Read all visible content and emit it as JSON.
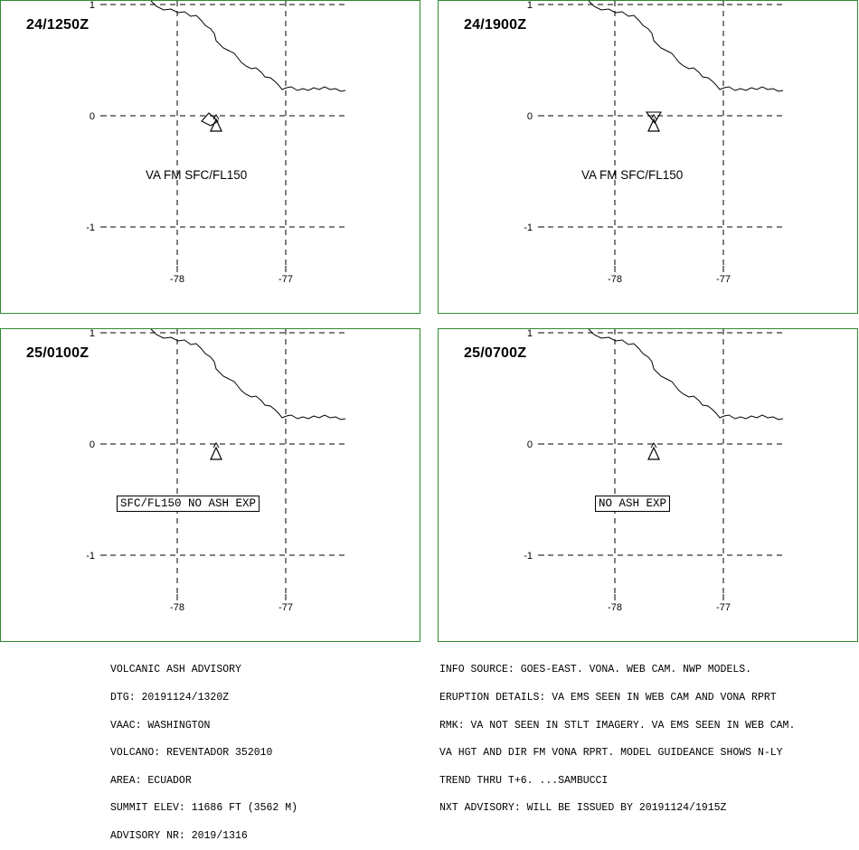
{
  "panels": [
    {
      "time": "24/1250Z",
      "label": "VA FM SFC/FL150",
      "label_style": "plain"
    },
    {
      "time": "24/1900Z",
      "label": "VA FM SFC/FL150",
      "label_style": "plain"
    },
    {
      "time": "25/0100Z",
      "label": "SFC/FL150 NO ASH EXP",
      "label_style": "boxed"
    },
    {
      "time": "25/0700Z",
      "label": "NO ASH EXP",
      "label_style": "boxed"
    }
  ],
  "axis": {
    "lat_ticks": [
      "1",
      "0",
      "-1"
    ],
    "lon_ticks": [
      "-78",
      "-77"
    ]
  },
  "advisory_left": [
    "VOLCANIC ASH ADVISORY",
    "DTG: 20191124/1320Z",
    "VAAC: WASHINGTON",
    "VOLCANO: REVENTADOR 352010",
    "AREA: ECUADOR",
    "SUMMIT ELEV: 11686 FT (3562 M)",
    "ADVISORY NR: 2019/1316"
  ],
  "advisory_right": [
    "INFO SOURCE: GOES-EAST. VONA. WEB CAM. NWP MODELS.",
    "ERUPTION DETAILS: VA EMS SEEN IN WEB CAM AND VONA RPRT",
    "RMK: VA NOT SEEN IN STLT IMAGERY. VA EMS SEEN IN WEB CAM.",
    "VA HGT AND DIR FM VONA RPRT. MODEL GUIDEANCE SHOWS N-LY",
    "TREND THRU T+6. ...SAMBUCCI",
    "NXT ADVISORY: WILL BE ISSUED BY 20191124/1915Z"
  ]
}
